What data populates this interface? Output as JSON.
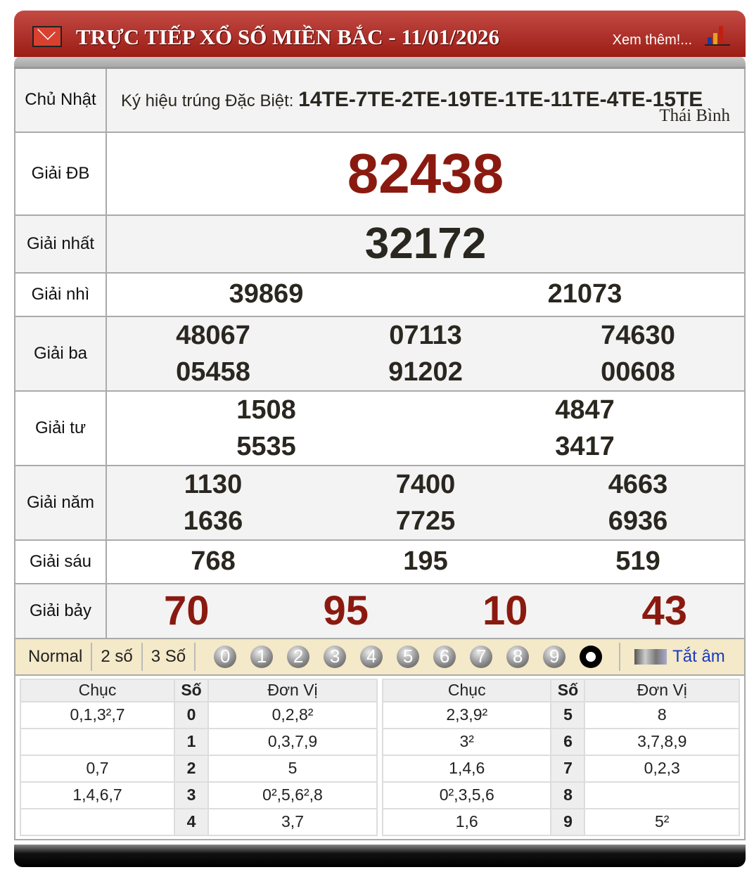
{
  "header": {
    "title": "TRỰC TIẾP XỔ SỐ MIỀN BẮC - 11/01/2026",
    "more": "Xem thêm!..."
  },
  "info": {
    "day": "Chủ Nhật",
    "symbol_label": "Ký hiệu trúng Đặc Biệt:",
    "symbols": "14TE-7TE-2TE-19TE-1TE-11TE-4TE-15TE",
    "province": "Thái Bình"
  },
  "prizes": [
    {
      "label": "Giải ĐB",
      "numbers": [
        "82438"
      ]
    },
    {
      "label": "Giải nhất",
      "numbers": [
        "32172"
      ]
    },
    {
      "label": "Giải nhì",
      "numbers": [
        "39869",
        "21073"
      ]
    },
    {
      "label": "Giải ba",
      "numbers": [
        "48067",
        "07113",
        "74630",
        "05458",
        "91202",
        "00608"
      ]
    },
    {
      "label": "Giải tư",
      "numbers": [
        "1508",
        "4847",
        "5535",
        "3417"
      ]
    },
    {
      "label": "Giải năm",
      "numbers": [
        "1130",
        "7400",
        "4663",
        "1636",
        "7725",
        "6936"
      ]
    },
    {
      "label": "Giải sáu",
      "numbers": [
        "768",
        "195",
        "519"
      ]
    },
    {
      "label": "Giải bảy",
      "numbers": [
        "70",
        "95",
        "10",
        "43"
      ]
    }
  ],
  "toolbar": {
    "options": [
      "Normal",
      "2 số",
      "3 Số"
    ],
    "digits": [
      "0",
      "1",
      "2",
      "3",
      "4",
      "5",
      "6",
      "7",
      "8",
      "9"
    ],
    "mute": "Tắt âm"
  },
  "loto": {
    "headers": [
      "Chục",
      "Số",
      "Đơn Vị"
    ],
    "left": [
      [
        "0,1,3²,7",
        "0",
        "0,2,8²"
      ],
      [
        "",
        "1",
        "0,3,7,9"
      ],
      [
        "0,7",
        "2",
        "5"
      ],
      [
        "1,4,6,7",
        "3",
        "0²,5,6²,8"
      ],
      [
        "",
        "4",
        "3,7"
      ]
    ],
    "right": [
      [
        "2,3,9²",
        "5",
        "8"
      ],
      [
        "3²",
        "6",
        "3,7,8,9"
      ],
      [
        "1,4,6",
        "7",
        "0,2,3"
      ],
      [
        "0²,3,5,6",
        "8",
        ""
      ],
      [
        "1,6",
        "9",
        "5²"
      ]
    ]
  },
  "colors": {
    "header": "#9b1d15",
    "special": "#8a1a10",
    "toolbar": "#f4e9c8"
  }
}
